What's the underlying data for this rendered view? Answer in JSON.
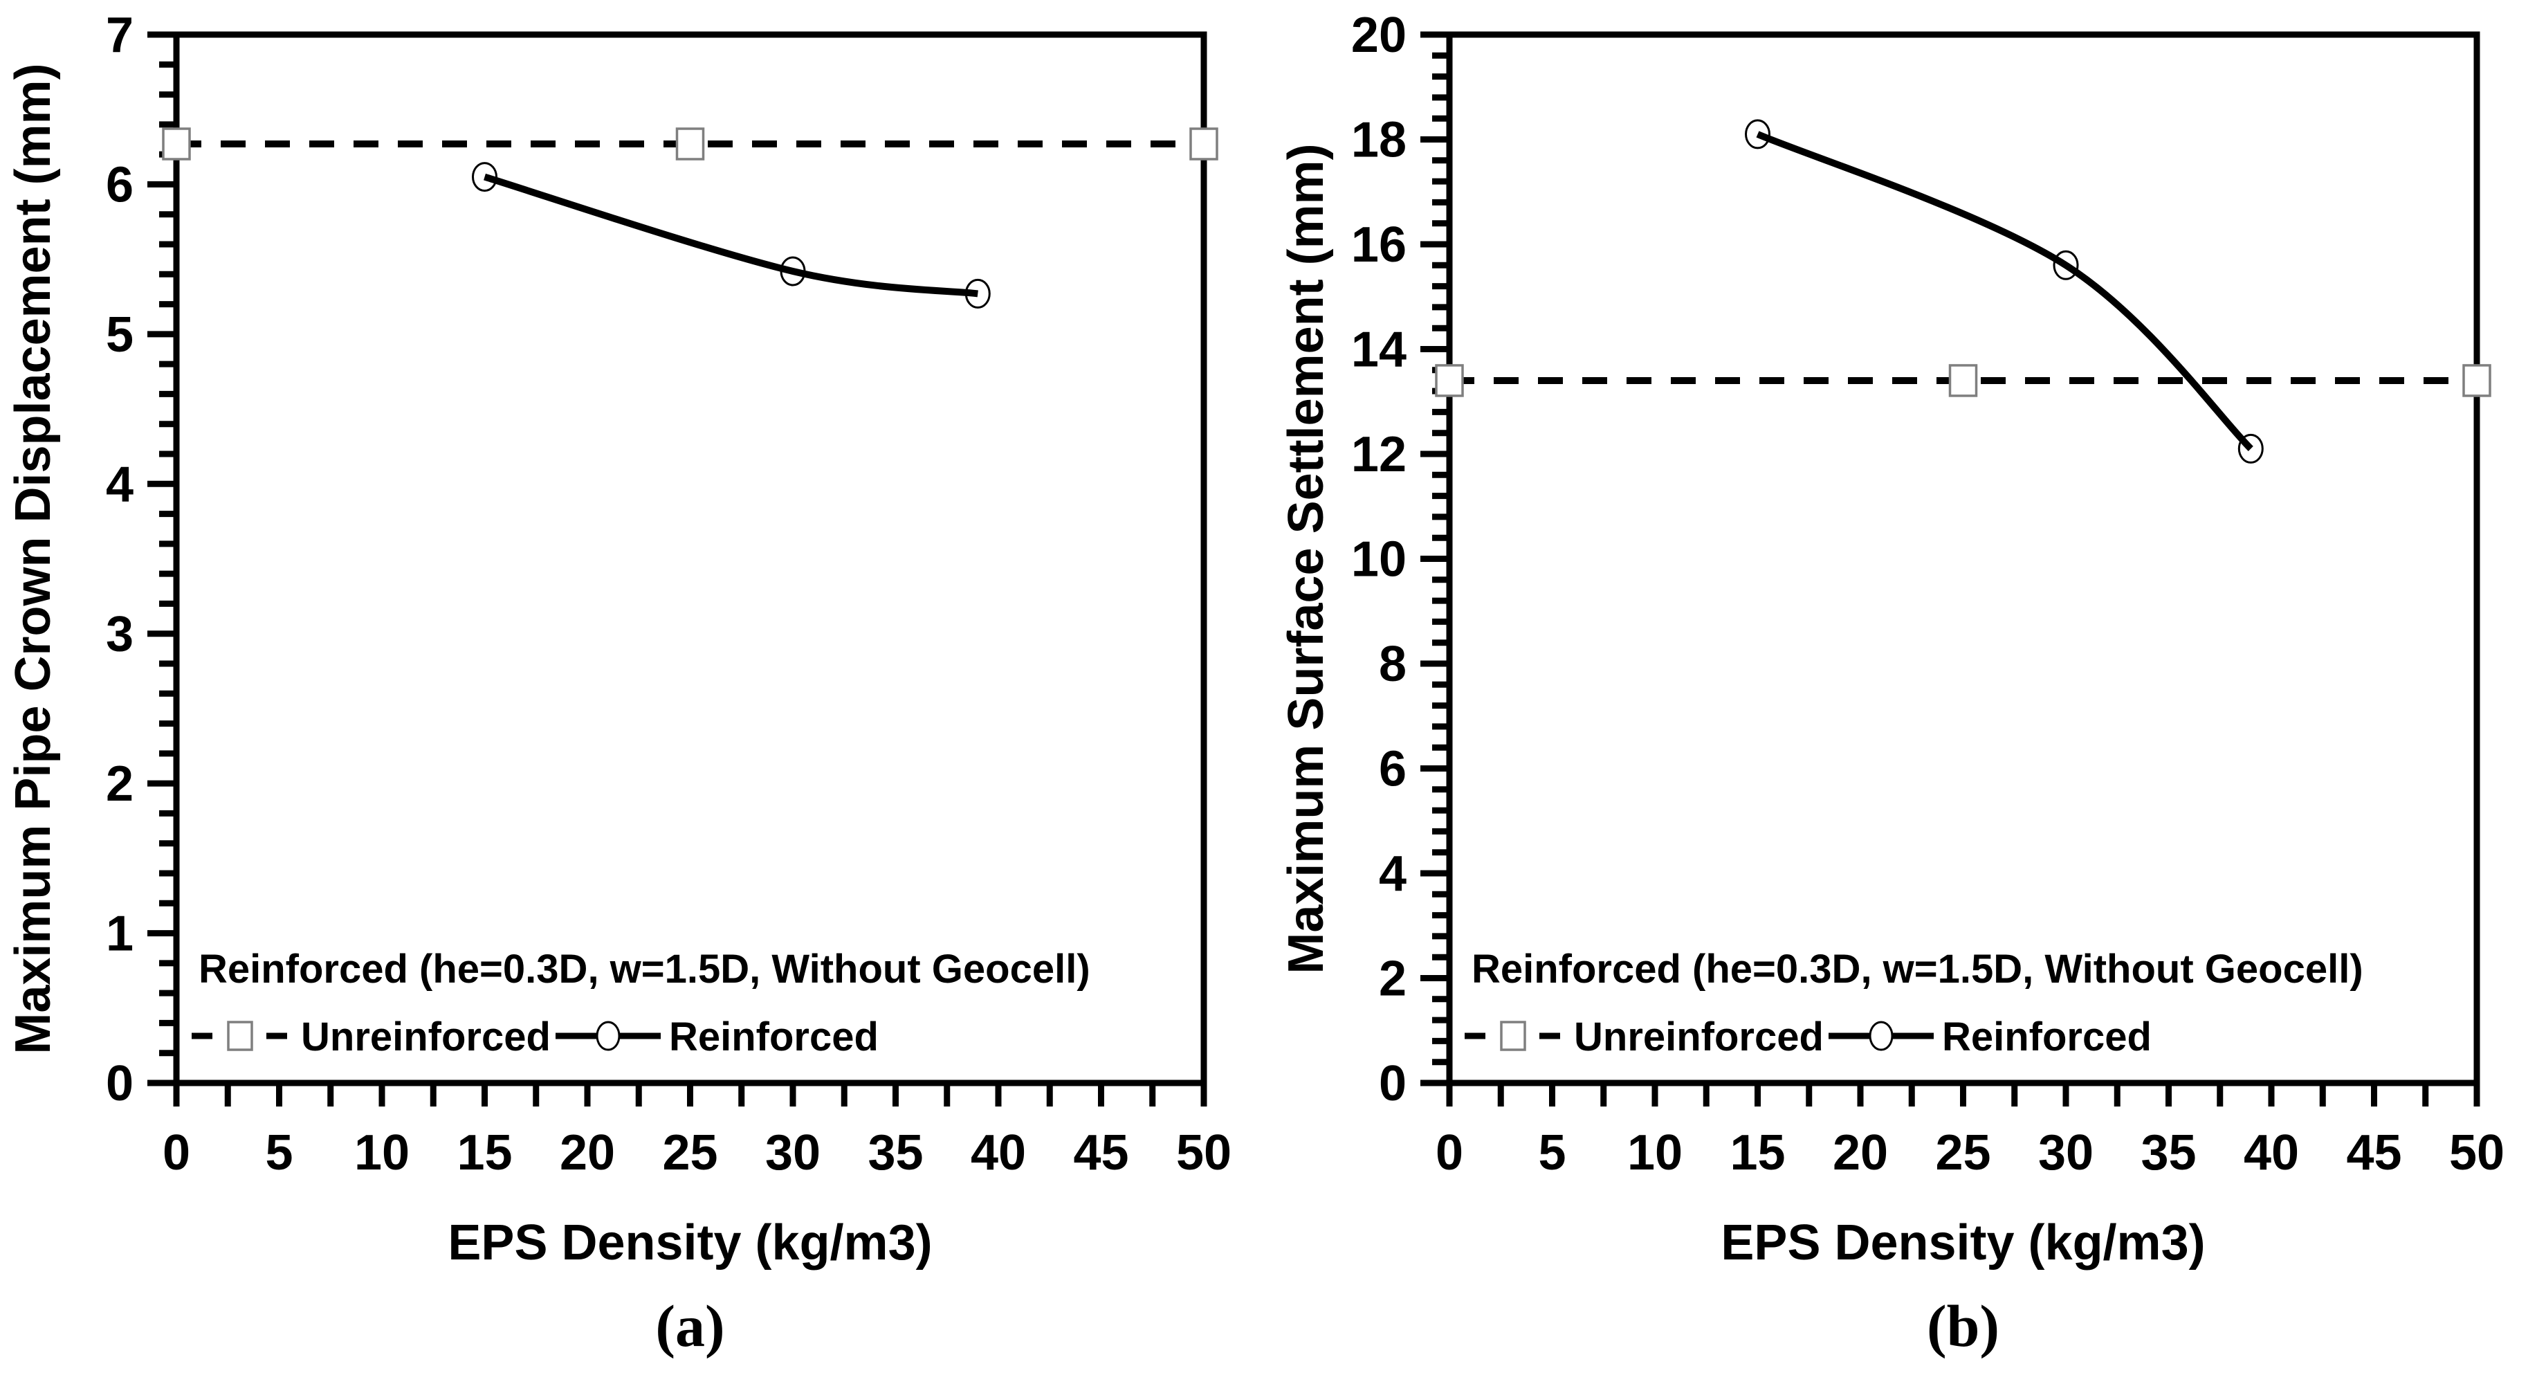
{
  "page": {
    "background": "#ffffff"
  },
  "colors": {
    "axis": "#000000",
    "line": "#000000",
    "square_marker_stroke": "#7f7f7f",
    "marker_fill": "#ffffff"
  },
  "chart_data": [
    {
      "type": "line",
      "caption": "(a)",
      "xlabel": "EPS Density (kg/m3)",
      "ylabel": "Maximum Pipe Crown Displacement (mm)",
      "xlim": [
        0,
        50
      ],
      "xtick_major": 5,
      "xtick_minor": 2.5,
      "ylim": [
        0,
        7
      ],
      "ytick_major": 1,
      "ytick_minor": 0.2,
      "grid": false,
      "legend_position": "inside-bottom-left",
      "legend_title": "Reinforced (he=0.3D, w=1.5D, Without Geocell)",
      "series": [
        {
          "name": "Unreinforced",
          "line": "dashed",
          "marker": "square",
          "x": [
            0,
            25,
            50
          ],
          "y": [
            6.27,
            6.27,
            6.27
          ]
        },
        {
          "name": "Reinforced",
          "line": "solid",
          "marker": "circle",
          "x": [
            15,
            30,
            39
          ],
          "y": [
            6.05,
            5.42,
            5.27
          ]
        }
      ]
    },
    {
      "type": "line",
      "caption": "(b)",
      "xlabel": "EPS Density (kg/m3)",
      "ylabel": "Maximum Surface Settlement (mm)",
      "xlim": [
        0,
        50
      ],
      "xtick_major": 5,
      "xtick_minor": 2.5,
      "ylim": [
        0,
        20
      ],
      "ytick_major": 2,
      "ytick_minor": 0.4,
      "grid": false,
      "legend_position": "inside-bottom-left",
      "legend_title": "Reinforced (he=0.3D, w=1.5D, Without Geocell)",
      "series": [
        {
          "name": "Unreinforced",
          "line": "dashed",
          "marker": "square",
          "x": [
            0,
            25,
            50
          ],
          "y": [
            13.4,
            13.4,
            13.4
          ]
        },
        {
          "name": "Reinforced",
          "line": "solid",
          "marker": "circle",
          "x": [
            15,
            30,
            39
          ],
          "y": [
            18.1,
            15.6,
            12.1
          ]
        }
      ]
    }
  ]
}
